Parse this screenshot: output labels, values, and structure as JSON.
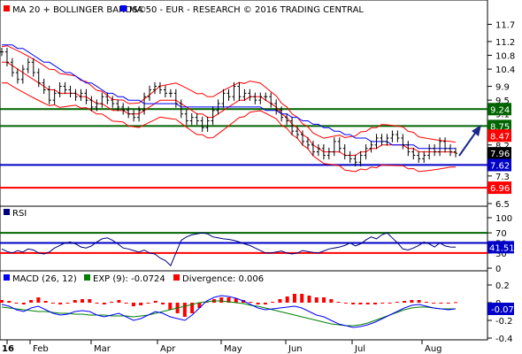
{
  "chart_data": [
    {
      "type": "line",
      "panel": "price",
      "legend": [
        {
          "label": "MA 20 + BOLLINGER BANDS",
          "color": "#ff0000",
          "marker": "©"
        },
        {
          "label": "MA 50 - EUR - RESEARCH © 2016 TRADING CENTRAL",
          "color": "#0000ff"
        }
      ],
      "x_axis": {
        "labels": [
          "16",
          "Feb",
          "Mar",
          "Apr",
          "May",
          "Jun",
          "Jul",
          "Aug"
        ],
        "label_x": [
          8,
          34,
          103,
          178,
          250,
          323,
          398,
          477
        ]
      },
      "ylim": [
        6.5,
        12.2
      ],
      "y_ticks": [
        "11.7",
        "11.2",
        "10.8",
        "10.4",
        "9.9",
        "9.5",
        "9.1",
        "8.6",
        "8.2",
        "7.7",
        "7.3",
        "6.9",
        "6.5"
      ],
      "horizontal_levels": [
        {
          "value": 9.24,
          "label": "9.24",
          "color": "#006400"
        },
        {
          "value": 8.75,
          "label": "8.75",
          "color": "#006400"
        },
        {
          "value": 7.62,
          "label": "7.62",
          "color": "#0000c8"
        },
        {
          "value": 6.96,
          "label": "6.96",
          "color": "#ff0000"
        }
      ],
      "price_tags": [
        {
          "value": 8.47,
          "label": "8.47",
          "color": "#ff0000"
        },
        {
          "value": 7.96,
          "label": "7.96",
          "color": "#000000"
        },
        {
          "value": 7.62,
          "label": "7.62",
          "color": "#0000c8"
        }
      ],
      "close_approx": [
        10.9,
        10.6,
        10.3,
        10.1,
        10.4,
        10.6,
        10.3,
        10.0,
        9.8,
        9.5,
        9.7,
        9.9,
        9.8,
        9.7,
        9.6,
        9.7,
        9.5,
        9.3,
        9.4,
        9.6,
        9.5,
        9.4,
        9.3,
        9.2,
        9.1,
        9.0,
        9.2,
        9.6,
        9.8,
        9.9,
        9.8,
        9.7,
        9.7,
        9.4,
        9.1,
        8.9,
        9.0,
        8.9,
        8.7,
        8.9,
        9.2,
        9.4,
        9.7,
        9.6,
        9.9,
        9.6,
        9.7,
        9.6,
        9.5,
        9.6,
        9.6,
        9.4,
        9.2,
        9.0,
        8.9,
        8.6,
        8.5,
        8.3,
        8.2,
        8.0,
        8.1,
        7.9,
        8.0,
        8.3,
        8.1,
        7.9,
        7.8,
        7.7,
        7.9,
        8.1,
        8.2,
        8.4,
        8.3,
        8.4,
        8.5,
        8.4,
        8.2,
        8.0,
        7.9,
        7.8,
        7.9,
        8.1,
        8.0,
        8.3,
        8.1,
        8.0,
        7.96
      ],
      "ma20_approx": [
        10.6,
        10.6,
        10.5,
        10.4,
        10.3,
        10.2,
        10.1,
        10.0,
        9.9,
        9.8,
        9.8,
        9.7,
        9.7,
        9.7,
        9.7,
        9.6,
        9.6,
        9.5,
        9.4,
        9.4,
        9.3,
        9.2,
        9.2,
        9.2,
        9.1,
        9.1,
        9.1,
        9.2,
        9.3,
        9.4,
        9.5,
        9.5,
        9.5,
        9.5,
        9.4,
        9.3,
        9.2,
        9.1,
        9.1,
        9.0,
        9.0,
        9.1,
        9.2,
        9.3,
        9.4,
        9.5,
        9.5,
        9.6,
        9.6,
        9.6,
        9.5,
        9.4,
        9.3,
        9.1,
        9.0,
        8.8,
        8.7,
        8.5,
        8.4,
        8.2,
        8.1,
        8.0,
        8.0,
        8.0,
        8.0,
        7.9,
        7.9,
        7.9,
        8.0,
        8.0,
        8.1,
        8.1,
        8.2,
        8.2,
        8.2,
        8.2,
        8.2,
        8.1,
        8.1,
        8.0,
        8.0,
        8.0,
        8.0,
        8.0,
        8.0,
        8.0,
        7.98
      ],
      "ma50_approx": [
        11.1,
        11.1,
        11.1,
        11.0,
        11.0,
        10.9,
        10.8,
        10.7,
        10.6,
        10.6,
        10.5,
        10.4,
        10.3,
        10.3,
        10.2,
        10.1,
        10.0,
        10.0,
        9.9,
        9.8,
        9.7,
        9.7,
        9.6,
        9.6,
        9.5,
        9.5,
        9.5,
        9.4,
        9.4,
        9.4,
        9.4,
        9.4,
        9.4,
        9.4,
        9.3,
        9.3,
        9.3,
        9.3,
        9.3,
        9.3,
        9.3,
        9.3,
        9.3,
        9.3,
        9.3,
        9.3,
        9.3,
        9.3,
        9.3,
        9.3,
        9.2,
        9.2,
        9.2,
        9.1,
        9.1,
        9.0,
        9.0,
        8.9,
        8.9,
        8.8,
        8.8,
        8.7,
        8.7,
        8.6,
        8.6,
        8.5,
        8.5,
        8.4,
        8.4,
        8.4,
        8.3,
        8.3,
        8.3,
        8.3,
        8.2,
        8.2,
        8.2,
        8.2,
        8.2,
        8.1,
        8.1,
        8.1,
        8.1,
        8.1,
        8.1,
        8.1,
        8.1
      ]
    },
    {
      "type": "line",
      "panel": "rsi",
      "legend": [
        {
          "label": "RSI",
          "color": "#000000"
        }
      ],
      "ylim": [
        0,
        100
      ],
      "y_ticks": [
        "100",
        "70",
        "50",
        "30",
        "0"
      ],
      "levels": [
        {
          "value": 70,
          "color": "#006400"
        },
        {
          "value": 50,
          "color": "#0000c8"
        },
        {
          "value": 30,
          "color": "#ff0000"
        }
      ],
      "value_tag": {
        "value": 41.51,
        "label": "41.51"
      },
      "values_approx": [
        38,
        33,
        30,
        35,
        32,
        38,
        36,
        30,
        28,
        32,
        40,
        45,
        50,
        52,
        48,
        42,
        40,
        44,
        52,
        58,
        60,
        55,
        48,
        40,
        38,
        35,
        32,
        36,
        30,
        28,
        20,
        15,
        5,
        30,
        55,
        62,
        66,
        68,
        70,
        68,
        62,
        60,
        58,
        57,
        55,
        52,
        48,
        45,
        40,
        35,
        30,
        30,
        32,
        34,
        30,
        28,
        30,
        35,
        33,
        31,
        30,
        34,
        38,
        40,
        42,
        45,
        50,
        44,
        48,
        56,
        62,
        58,
        66,
        70,
        60,
        50,
        38,
        36,
        40,
        45,
        52,
        48,
        42,
        50,
        44,
        42,
        41.51
      ]
    },
    {
      "type": "bar",
      "panel": "macd",
      "legend": [
        {
          "label": "MACD (26, 12)",
          "color": "#0000ff"
        },
        {
          "label": "EXP (9): -0.0724",
          "color": "#008000"
        },
        {
          "label": "Divergence: 0.006",
          "color": "#ff0000"
        }
      ],
      "ylim": [
        -0.4,
        0.2
      ],
      "y_ticks": [
        "0.2",
        "0",
        "-0.2",
        "-0.4"
      ],
      "value_tag": {
        "value": -0.07,
        "label": "-0.07"
      },
      "macd_approx": [
        -0.02,
        -0.04,
        -0.08,
        -0.1,
        -0.06,
        -0.04,
        -0.08,
        -0.12,
        -0.14,
        -0.13,
        -0.1,
        -0.09,
        -0.1,
        -0.14,
        -0.16,
        -0.14,
        -0.12,
        -0.16,
        -0.2,
        -0.18,
        -0.14,
        -0.1,
        -0.12,
        -0.16,
        -0.18,
        -0.2,
        -0.14,
        -0.06,
        0.02,
        0.06,
        0.08,
        0.07,
        0.05,
        0.02,
        -0.02,
        -0.06,
        -0.08,
        -0.07,
        -0.06,
        -0.05,
        -0.04,
        -0.06,
        -0.1,
        -0.14,
        -0.16,
        -0.2,
        -0.24,
        -0.26,
        -0.28,
        -0.27,
        -0.25,
        -0.22,
        -0.18,
        -0.14,
        -0.1,
        -0.06,
        -0.03,
        -0.02,
        -0.04,
        -0.06,
        -0.07,
        -0.08,
        -0.07
      ],
      "signal_approx": [
        -0.05,
        -0.06,
        -0.07,
        -0.08,
        -0.09,
        -0.1,
        -0.1,
        -0.11,
        -0.12,
        -0.12,
        -0.13,
        -0.13,
        -0.14,
        -0.14,
        -0.14,
        -0.15,
        -0.15,
        -0.15,
        -0.16,
        -0.15,
        -0.14,
        -0.12,
        -0.1,
        -0.08,
        -0.06,
        -0.04,
        -0.02,
        0.0,
        0.01,
        0.02,
        0.02,
        0.01,
        0.0,
        -0.01,
        -0.03,
        -0.04,
        -0.06,
        -0.08,
        -0.1,
        -0.12,
        -0.14,
        -0.16,
        -0.18,
        -0.2,
        -0.22,
        -0.24,
        -0.25,
        -0.26,
        -0.26,
        -0.25,
        -0.23,
        -0.2,
        -0.17,
        -0.14,
        -0.11,
        -0.08,
        -0.06,
        -0.05,
        -0.05,
        -0.06,
        -0.07,
        -0.07,
        -0.07
      ],
      "divergence_approx": [
        0.03,
        0.02,
        -0.01,
        -0.02,
        0.03,
        0.06,
        0.02,
        -0.01,
        -0.02,
        -0.01,
        0.03,
        0.04,
        0.04,
        0.0,
        -0.02,
        0.01,
        0.03,
        -0.01,
        -0.04,
        -0.03,
        0.0,
        0.02,
        -0.02,
        -0.08,
        -0.12,
        -0.16,
        -0.12,
        -0.06,
        0.01,
        0.04,
        0.06,
        0.06,
        0.05,
        0.03,
        0.01,
        -0.02,
        -0.02,
        0.01,
        0.04,
        0.07,
        0.1,
        0.1,
        0.08,
        0.06,
        0.06,
        0.04,
        0.01,
        0.0,
        -0.02,
        -0.02,
        -0.02,
        -0.02,
        -0.01,
        0.0,
        0.01,
        0.02,
        0.03,
        0.03,
        0.01,
        0.0,
        0.0,
        -0.01,
        0.006
      ]
    }
  ]
}
